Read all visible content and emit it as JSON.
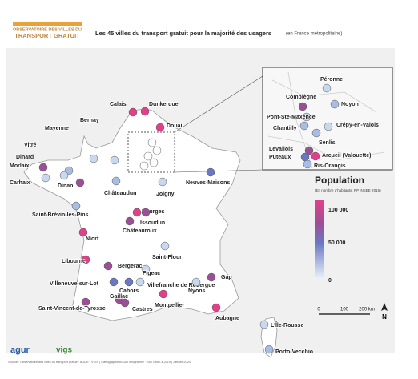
{
  "header": {
    "logo_line1": "OBSERVATOIRE DES VILLES DU",
    "logo_line2": "TRANSPORT GRATUIT",
    "title": "Les 45 villes du transport gratuit pour la majorité des usagers",
    "subtitle": "(en France métropolitaine)"
  },
  "cities": [
    {
      "name": "Calais",
      "color": "#e0408a"
    },
    {
      "name": "Dunkerque",
      "color": "#e0408a"
    },
    {
      "name": "Douai",
      "color": "#e0408a"
    },
    {
      "name": "Bernay",
      "color": "#c8d8ee"
    },
    {
      "name": "Mayenne",
      "color": "#c8d8ee"
    },
    {
      "name": "Vitré",
      "color": "#a9bde4"
    },
    {
      "name": "Dinard",
      "color": "#c8d8ee"
    },
    {
      "name": "Morlaix",
      "color": "#9b4f96"
    },
    {
      "name": "Carhaix",
      "color": "#c8d8ee"
    },
    {
      "name": "Dinan",
      "color": "#9b4f96"
    },
    {
      "name": "Châteaudun",
      "color": "#a9bde4"
    },
    {
      "name": "Joigny",
      "color": "#c8d8ee"
    },
    {
      "name": "Neuves-Maisons",
      "color": "#6a78c4"
    },
    {
      "name": "Saint-Brévin-les-Pins",
      "color": "#a9bde4"
    },
    {
      "name": "Bourges",
      "color": "#e0408a"
    },
    {
      "name": "Issoudun",
      "color": "#9b4f96"
    },
    {
      "name": "Châteauroux",
      "color": "#9b4f96"
    },
    {
      "name": "Niort",
      "color": "#e0408a"
    },
    {
      "name": "Saint-Flour",
      "color": "#c8d8ee"
    },
    {
      "name": "Libourne",
      "color": "#e0408a"
    },
    {
      "name": "Bergerac",
      "color": "#9b4f96"
    },
    {
      "name": "Figeac",
      "color": "#c8d8ee"
    },
    {
      "name": "Cahors",
      "color": "#6a78c4"
    },
    {
      "name": "Villeneuve-sur-Lot",
      "color": "#6a78c4"
    },
    {
      "name": "Villefranche de Rouergue",
      "color": "#c8d8ee"
    },
    {
      "name": "Gap",
      "color": "#9b4f96"
    },
    {
      "name": "Nyons",
      "color": "#c8d8ee"
    },
    {
      "name": "Gaillac",
      "color": "#9b4f96"
    },
    {
      "name": "Saint-Vincent-de-Tyrosse",
      "color": "#9b4f96"
    },
    {
      "name": "Castres",
      "color": "#9b4f96"
    },
    {
      "name": "Montpellier",
      "color": "#e0408a"
    },
    {
      "name": "Aubagne",
      "color": "#e0408a"
    },
    {
      "name": "L'Île-Rousse",
      "color": "#c8d8ee"
    },
    {
      "name": "Porto-Vecchio",
      "color": "#a9bde4"
    }
  ],
  "inset_cities": [
    {
      "name": "Péronne",
      "color": "#c8d8ee"
    },
    {
      "name": "Noyon",
      "color": "#a9bde4"
    },
    {
      "name": "Compiègne",
      "color": "#9b4f96"
    },
    {
      "name": "Pont-Ste-Maxence",
      "color": "#c8d8ee"
    },
    {
      "name": "Chantilly",
      "color": "#a9bde4"
    },
    {
      "name": "Crépy-en-Valois",
      "color": "#c8d8ee"
    },
    {
      "name": "Senlis",
      "color": "#a9bde4"
    },
    {
      "name": "Levallois",
      "color": "#9b4f96"
    },
    {
      "name": "Puteaux",
      "color": "#6a78c4"
    },
    {
      "name": "Arcueil (Valouette)",
      "color": "#e0408a"
    },
    {
      "name": "Ris-Orangis",
      "color": "#a9bde4"
    }
  ],
  "legend": {
    "title": "Population",
    "subtitle": "(En nombre d'habitants, RP INSEE 2016)",
    "ticks": [
      "100 000",
      "50 000",
      "0"
    ]
  },
  "scale": [
    "0",
    "100",
    "200 km"
  ],
  "north": "N",
  "footer": {
    "logo1": "agur",
    "logo2": "vigs",
    "source": "Source : Observatoire des villes du transport gratuit · AGUR · VIGS | Cartographie AGUR Infographie · SIG Géo2.4 2019 | Janvier 2024"
  }
}
